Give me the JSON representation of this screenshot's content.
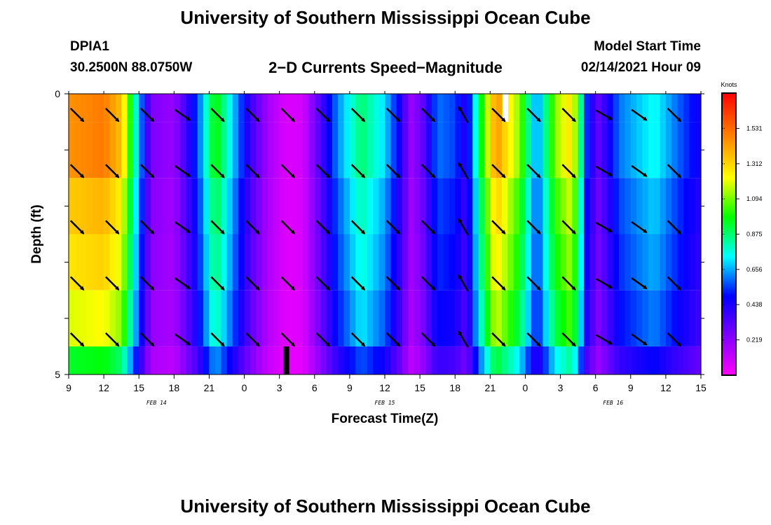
{
  "header": {
    "title": "University of Southern Mississippi Ocean Cube",
    "station_id": "DPIA1",
    "station_coords": "30.2500N 88.0750W",
    "chart_title": "2−D Currents Speed−Magnitude",
    "model_start_label": "Model Start Time",
    "model_start_value": "02/14/2021 Hour 09"
  },
  "footer": {
    "title": "University of Southern Mississippi Ocean Cube"
  },
  "chart_data": {
    "type": "heatmap",
    "title": "2−D Currents Speed−Magnitude",
    "xlabel": "Forecast Time(Z)",
    "ylabel": "Depth (ft)",
    "x_unit": "forecast hour from 02/14/2021 09Z",
    "xlim": [
      0,
      54
    ],
    "ylim": [
      0,
      5
    ],
    "y_ticks": [
      "0",
      "5"
    ],
    "x_ticks": [
      {
        "hour": 0,
        "label": "9"
      },
      {
        "hour": 3,
        "label": "12"
      },
      {
        "hour": 6,
        "label": "15"
      },
      {
        "hour": 9,
        "label": "18"
      },
      {
        "hour": 12,
        "label": "21"
      },
      {
        "hour": 15,
        "label": "0"
      },
      {
        "hour": 18,
        "label": "3"
      },
      {
        "hour": 21,
        "label": "6"
      },
      {
        "hour": 24,
        "label": "9"
      },
      {
        "hour": 27,
        "label": "12"
      },
      {
        "hour": 30,
        "label": "15"
      },
      {
        "hour": 33,
        "label": "18"
      },
      {
        "hour": 36,
        "label": "21"
      },
      {
        "hour": 39,
        "label": "0"
      },
      {
        "hour": 42,
        "label": "3"
      },
      {
        "hour": 45,
        "label": "6"
      },
      {
        "hour": 48,
        "label": "9"
      },
      {
        "hour": 51,
        "label": "12"
      },
      {
        "hour": 54,
        "label": "15"
      }
    ],
    "date_labels": [
      {
        "hour": 7.5,
        "label": "FEB 14"
      },
      {
        "hour": 27,
        "label": "FEB 15"
      },
      {
        "hour": 46.5,
        "label": "FEB 16"
      }
    ],
    "colorbar": {
      "unit": "Knots",
      "min": 0,
      "max": 1.75,
      "ticks": [
        0.219,
        0.438,
        0.656,
        0.875,
        1.094,
        1.312,
        1.531
      ]
    },
    "depth_layers": [
      0,
      1,
      2,
      3,
      4,
      5
    ],
    "speed_profile_knots": [
      {
        "hour": 0,
        "speed": 1.45
      },
      {
        "hour": 3,
        "speed": 1.5
      },
      {
        "hour": 4.5,
        "speed": 1.35
      },
      {
        "hour": 5.5,
        "speed": 0.9
      },
      {
        "hour": 6.3,
        "speed": 0.55
      },
      {
        "hour": 7,
        "speed": 0.25
      },
      {
        "hour": 9,
        "speed": 0.2
      },
      {
        "hour": 11,
        "speed": 0.55
      },
      {
        "hour": 12.5,
        "speed": 1.0
      },
      {
        "hour": 14,
        "speed": 0.7
      },
      {
        "hour": 15.5,
        "speed": 0.38
      },
      {
        "hour": 17,
        "speed": 0.18
      },
      {
        "hour": 18.5,
        "speed": 0.07
      },
      {
        "hour": 20,
        "speed": 0.08
      },
      {
        "hour": 21.5,
        "speed": 0.35
      },
      {
        "hour": 23,
        "speed": 0.62
      },
      {
        "hour": 25,
        "speed": 0.88
      },
      {
        "hour": 27,
        "speed": 0.7
      },
      {
        "hour": 28.3,
        "speed": 0.45
      },
      {
        "hour": 29.2,
        "speed": 0.2
      },
      {
        "hour": 30.2,
        "speed": 0.3
      },
      {
        "hour": 31.5,
        "speed": 0.6
      },
      {
        "hour": 33,
        "speed": 0.55
      },
      {
        "hour": 34,
        "speed": 0.4
      },
      {
        "hour": 35.3,
        "speed": 1.0
      },
      {
        "hour": 36.5,
        "speed": 1.45
      },
      {
        "hour": 38.5,
        "speed": 1.1
      },
      {
        "hour": 40,
        "speed": 0.6
      },
      {
        "hour": 41.5,
        "speed": 1.1
      },
      {
        "hour": 43,
        "speed": 1.3
      },
      {
        "hour": 44.3,
        "speed": 0.5
      },
      {
        "hour": 45.3,
        "speed": 0.3
      },
      {
        "hour": 47,
        "speed": 0.6
      },
      {
        "hour": 50,
        "speed": 0.75
      },
      {
        "hour": 52.5,
        "speed": 0.55
      },
      {
        "hour": 54,
        "speed": 0.45
      }
    ],
    "depth_speed_factor": [
      1.0,
      1.0,
      0.92,
      0.88,
      0.82,
      0.65
    ],
    "vector_rows_depth": [
      0.5,
      1.5,
      2.5,
      3.5,
      4.5
    ],
    "vector_hours": [
      0,
      3,
      6,
      9,
      12,
      15,
      18,
      21,
      24,
      27,
      30,
      33,
      36,
      39,
      42,
      45,
      48,
      51
    ],
    "vector_direction_deg_math": [
      -45,
      -45,
      -45,
      -35,
      -45,
      -45,
      -45,
      -45,
      -45,
      -45,
      -45,
      120,
      -45,
      -45,
      -45,
      -30,
      -35,
      -45
    ],
    "missing_value_marks": [
      {
        "hour": 37.3,
        "depth_from": 0,
        "depth_to": 0.5,
        "color": "#ffffff"
      },
      {
        "hour": 18.6,
        "depth_from": 4.5,
        "depth_to": 5,
        "color": "#000000"
      }
    ]
  }
}
